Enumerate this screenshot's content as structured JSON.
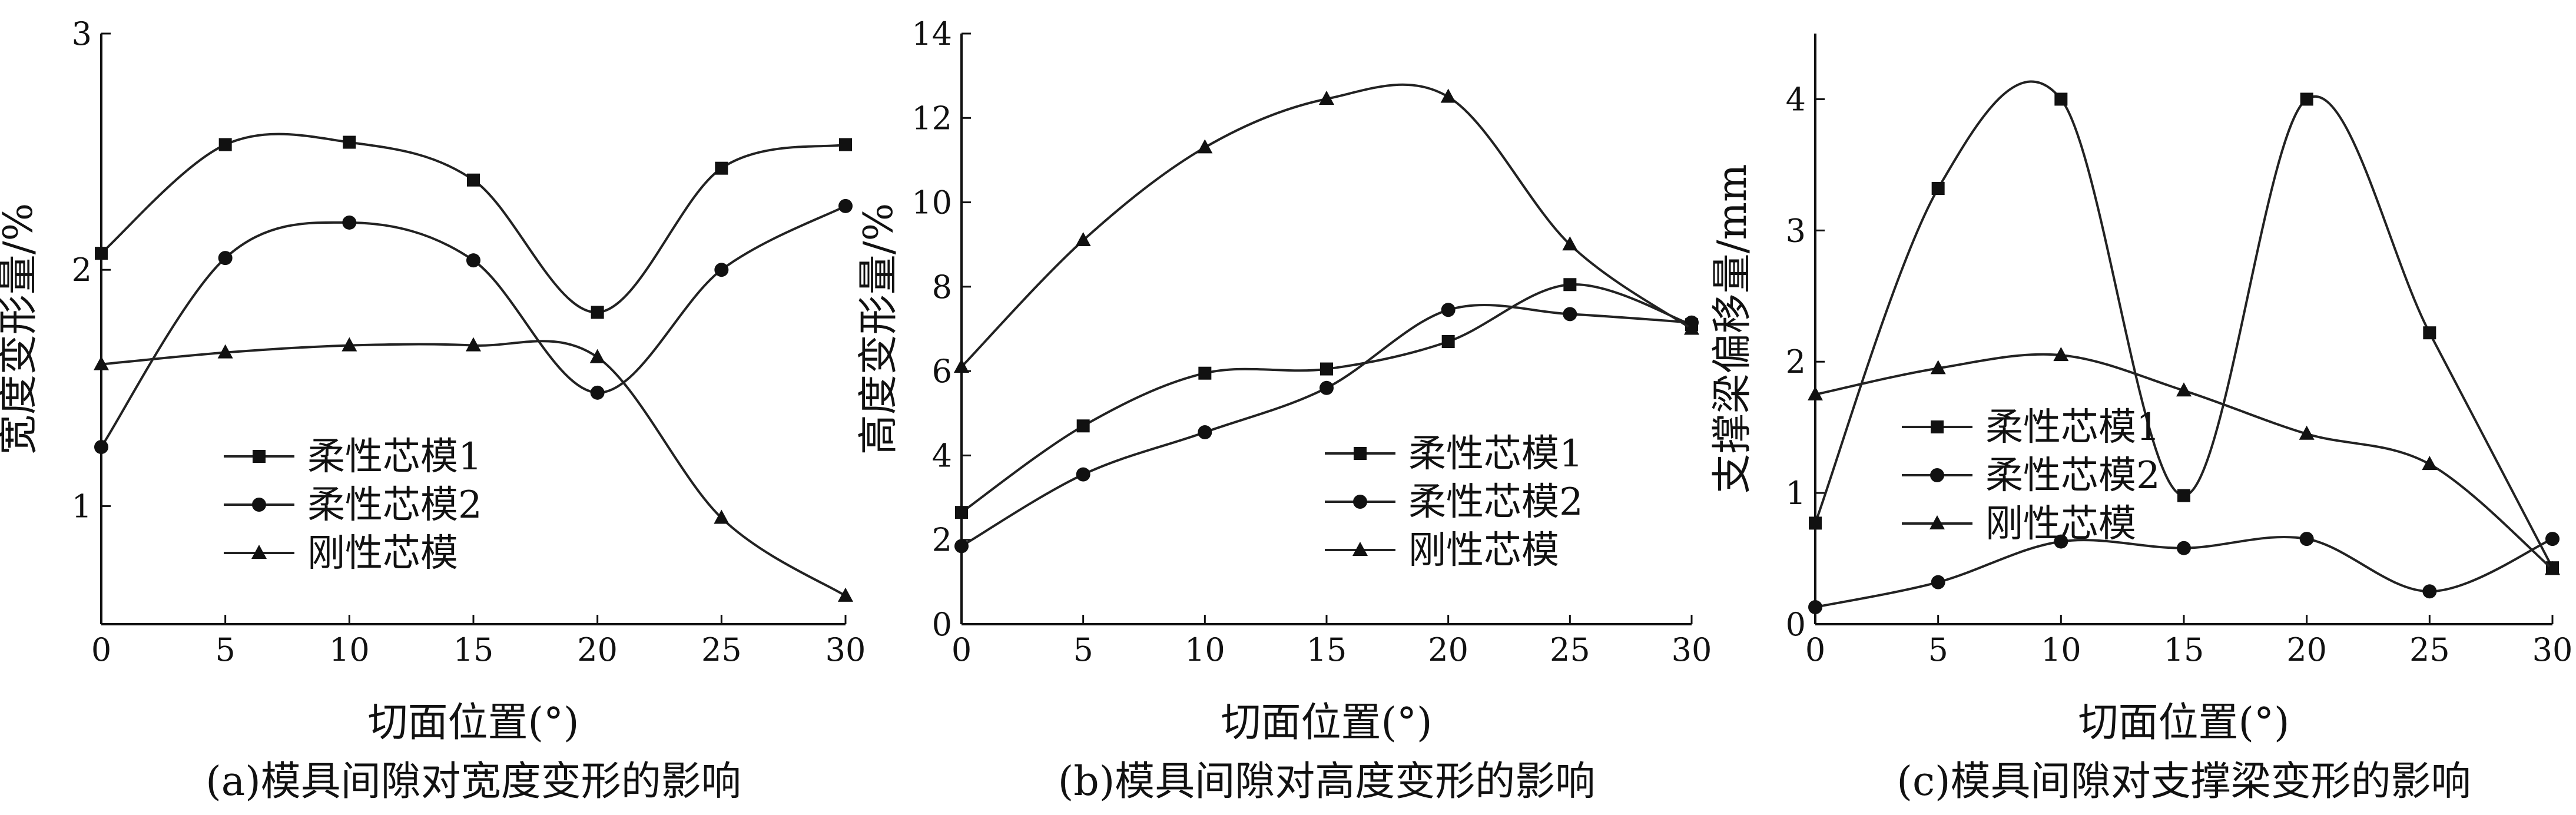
{
  "chart_data": [
    {
      "type": "line",
      "caption": "(a)模具间隙对宽度变形的影响",
      "xlabel": "切面位置(°)",
      "ylabel": "宽度变形量/%",
      "xlim": [
        0,
        30
      ],
      "ylim": [
        0.5,
        3
      ],
      "xticks": [
        0,
        5,
        10,
        15,
        20,
        25,
        30
      ],
      "yticks": [
        1,
        2,
        3
      ],
      "legend": "middle-left",
      "categories": [
        0,
        5,
        10,
        15,
        20,
        25,
        30
      ],
      "series": [
        {
          "name": "柔性芯模1",
          "marker": "square",
          "values": [
            2.07,
            2.53,
            2.54,
            2.38,
            1.82,
            2.43,
            2.53
          ]
        },
        {
          "name": "柔性芯模2",
          "marker": "circle",
          "values": [
            1.25,
            2.05,
            2.2,
            2.04,
            1.48,
            2.0,
            2.27
          ]
        },
        {
          "name": "刚性芯模",
          "marker": "triangle",
          "values": [
            1.6,
            1.65,
            1.68,
            1.68,
            1.63,
            0.95,
            0.62
          ]
        }
      ]
    },
    {
      "type": "line",
      "caption": "(b)模具间隙对高度变形的影响",
      "xlabel": "切面位置(°)",
      "ylabel": "高度变形量/%",
      "xlim": [
        0,
        30
      ],
      "ylim": [
        0,
        14
      ],
      "xticks": [
        0,
        5,
        10,
        15,
        20,
        25,
        30
      ],
      "yticks": [
        0,
        2,
        4,
        6,
        8,
        10,
        12,
        14
      ],
      "legend": "bottom-right",
      "categories": [
        0,
        5,
        10,
        15,
        20,
        25,
        30
      ],
      "series": [
        {
          "name": "柔性芯模1",
          "marker": "square",
          "values": [
            2.65,
            4.7,
            5.95,
            6.05,
            6.7,
            8.05,
            7.1
          ]
        },
        {
          "name": "柔性芯模2",
          "marker": "circle",
          "values": [
            1.85,
            3.55,
            4.55,
            5.6,
            7.45,
            7.35,
            7.15
          ]
        },
        {
          "name": "刚性芯模",
          "marker": "triangle",
          "values": [
            6.1,
            9.1,
            11.3,
            12.45,
            12.5,
            9.0,
            7.0
          ]
        }
      ]
    },
    {
      "type": "line",
      "caption": "(c)模具间隙对支撑梁变形的影响",
      "xlabel": "切面位置(°)",
      "ylabel": "支撑梁偏移量/mm",
      "xlim": [
        0,
        30
      ],
      "ylim": [
        0,
        4.5
      ],
      "xticks": [
        0,
        5,
        10,
        15,
        20,
        25,
        30
      ],
      "yticks": [
        0,
        1,
        2,
        3,
        4
      ],
      "legend": "middle-left",
      "categories": [
        0,
        5,
        10,
        15,
        20,
        25,
        30
      ],
      "series": [
        {
          "name": "柔性芯模1",
          "marker": "square",
          "values": [
            0.77,
            3.32,
            4.0,
            0.98,
            4.0,
            2.22,
            0.43
          ]
        },
        {
          "name": "柔性芯模2",
          "marker": "circle",
          "values": [
            0.13,
            0.32,
            0.63,
            0.58,
            0.65,
            0.25,
            0.65
          ]
        },
        {
          "name": "刚性芯模",
          "marker": "triangle",
          "values": [
            1.75,
            1.95,
            2.05,
            1.78,
            1.45,
            1.22,
            0.42
          ]
        }
      ]
    }
  ]
}
